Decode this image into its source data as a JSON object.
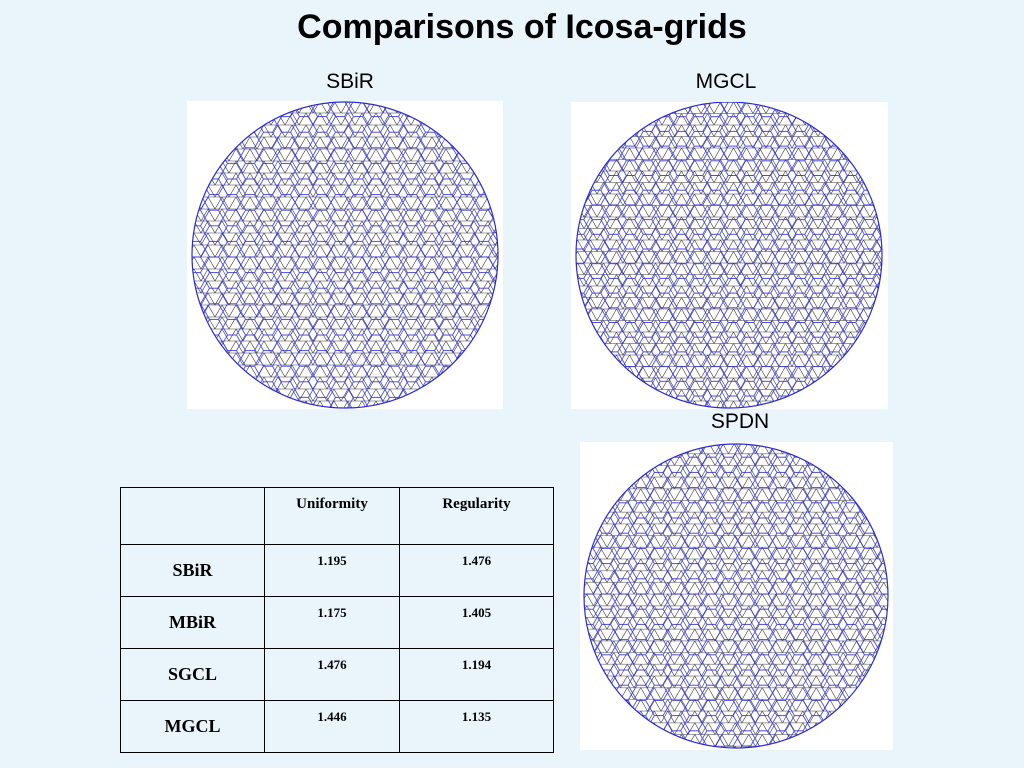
{
  "title": "Comparisons of Icosa-grids",
  "grids": [
    {
      "id": "sbir",
      "label": "SBiR"
    },
    {
      "id": "mgcl",
      "label": "MGCL"
    },
    {
      "id": "spdn",
      "label": "SPDN"
    }
  ],
  "colors": {
    "background": "#eaf5fb",
    "hex_cells": "#2a2ad8",
    "triangles": "#3a3a3a"
  },
  "table": {
    "headers": [
      "",
      "Uniformity",
      "Regularity"
    ],
    "rows": [
      {
        "name": "SBiR",
        "uniformity": "1.195",
        "regularity": "1.476"
      },
      {
        "name": "MBiR",
        "uniformity": "1.175",
        "regularity": "1.405"
      },
      {
        "name": "SGCL",
        "uniformity": "1.476",
        "regularity": "1.194"
      },
      {
        "name": "MGCL",
        "uniformity": "1.446",
        "regularity": "1.135"
      }
    ]
  }
}
